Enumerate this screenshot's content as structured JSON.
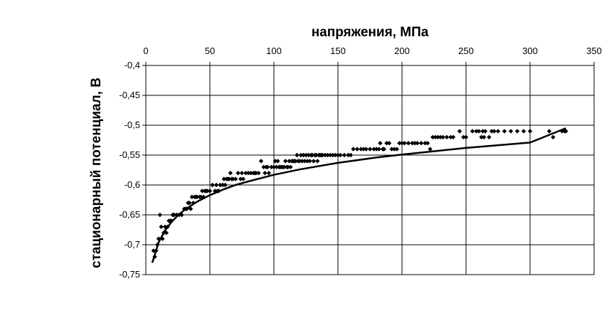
{
  "chart_data": {
    "type": "scatter",
    "xlabel": "напряжения, МПа",
    "ylabel": "стационарный потенциал, В",
    "x_axis_position": "top",
    "xlim": [
      0,
      350
    ],
    "ylim": [
      -0.75,
      -0.4
    ],
    "xticks": [
      0,
      50,
      100,
      150,
      200,
      250,
      300,
      350
    ],
    "yticks": [
      -0.4,
      -0.45,
      -0.5,
      -0.55,
      -0.6,
      -0.65,
      -0.7,
      -0.75
    ],
    "xtick_labels": [
      "0",
      "50",
      "100",
      "150",
      "200",
      "250",
      "300",
      "350"
    ],
    "ytick_labels": [
      "-0,4",
      "-0,45",
      "-0,5",
      "-0,55",
      "-0,6",
      "-0,65",
      "-0,7",
      "-0,75"
    ],
    "grid": true,
    "marker": "diamond",
    "marker_color": "#000000",
    "series": [
      {
        "points": [
          [
            6,
            -0.71
          ],
          [
            7,
            -0.72
          ],
          [
            8,
            -0.71
          ],
          [
            9,
            -0.7
          ],
          [
            10,
            -0.69
          ],
          [
            11,
            -0.65
          ],
          [
            12,
            -0.67
          ],
          [
            13,
            -0.69
          ],
          [
            14,
            -0.68
          ],
          [
            15,
            -0.67
          ],
          [
            16,
            -0.68
          ],
          [
            17,
            -0.67
          ],
          [
            18,
            -0.66
          ],
          [
            19,
            -0.66
          ],
          [
            20,
            -0.66
          ],
          [
            21,
            -0.65
          ],
          [
            22,
            -0.65
          ],
          [
            24,
            -0.65
          ],
          [
            26,
            -0.65
          ],
          [
            28,
            -0.65
          ],
          [
            30,
            -0.64
          ],
          [
            31,
            -0.64
          ],
          [
            32,
            -0.64
          ],
          [
            33,
            -0.63
          ],
          [
            34,
            -0.63
          ],
          [
            35,
            -0.64
          ],
          [
            36,
            -0.62
          ],
          [
            37,
            -0.63
          ],
          [
            38,
            -0.62
          ],
          [
            39,
            -0.62
          ],
          [
            40,
            -0.62
          ],
          [
            42,
            -0.62
          ],
          [
            43,
            -0.62
          ],
          [
            44,
            -0.61
          ],
          [
            45,
            -0.62
          ],
          [
            46,
            -0.61
          ],
          [
            47,
            -0.61
          ],
          [
            48,
            -0.61
          ],
          [
            50,
            -0.61
          ],
          [
            52,
            -0.6
          ],
          [
            54,
            -0.61
          ],
          [
            55,
            -0.6
          ],
          [
            56,
            -0.61
          ],
          [
            57,
            -0.61
          ],
          [
            58,
            -0.6
          ],
          [
            60,
            -0.6
          ],
          [
            61,
            -0.59
          ],
          [
            62,
            -0.6
          ],
          [
            63,
            -0.59
          ],
          [
            64,
            -0.59
          ],
          [
            65,
            -0.59
          ],
          [
            66,
            -0.58
          ],
          [
            67,
            -0.59
          ],
          [
            68,
            -0.59
          ],
          [
            70,
            -0.59
          ],
          [
            72,
            -0.58
          ],
          [
            74,
            -0.59
          ],
          [
            75,
            -0.58
          ],
          [
            76,
            -0.59
          ],
          [
            78,
            -0.58
          ],
          [
            80,
            -0.58
          ],
          [
            82,
            -0.58
          ],
          [
            84,
            -0.58
          ],
          [
            85,
            -0.58
          ],
          [
            86,
            -0.58
          ],
          [
            88,
            -0.58
          ],
          [
            90,
            -0.56
          ],
          [
            92,
            -0.57
          ],
          [
            93,
            -0.58
          ],
          [
            94,
            -0.57
          ],
          [
            95,
            -0.57
          ],
          [
            96,
            -0.58
          ],
          [
            98,
            -0.57
          ],
          [
            100,
            -0.57
          ],
          [
            101,
            -0.56
          ],
          [
            102,
            -0.57
          ],
          [
            103,
            -0.56
          ],
          [
            104,
            -0.57
          ],
          [
            105,
            -0.57
          ],
          [
            106,
            -0.57
          ],
          [
            107,
            -0.57
          ],
          [
            108,
            -0.57
          ],
          [
            109,
            -0.56
          ],
          [
            110,
            -0.57
          ],
          [
            111,
            -0.57
          ],
          [
            112,
            -0.56
          ],
          [
            113,
            -0.57
          ],
          [
            114,
            -0.56
          ],
          [
            115,
            -0.56
          ],
          [
            116,
            -0.56
          ],
          [
            117,
            -0.56
          ],
          [
            118,
            -0.55
          ],
          [
            119,
            -0.56
          ],
          [
            120,
            -0.56
          ],
          [
            121,
            -0.55
          ],
          [
            122,
            -0.56
          ],
          [
            123,
            -0.55
          ],
          [
            124,
            -0.56
          ],
          [
            125,
            -0.55
          ],
          [
            126,
            -0.56
          ],
          [
            127,
            -0.55
          ],
          [
            128,
            -0.56
          ],
          [
            129,
            -0.55
          ],
          [
            130,
            -0.55
          ],
          [
            131,
            -0.56
          ],
          [
            132,
            -0.55
          ],
          [
            133,
            -0.55
          ],
          [
            134,
            -0.56
          ],
          [
            135,
            -0.55
          ],
          [
            136,
            -0.55
          ],
          [
            137,
            -0.55
          ],
          [
            138,
            -0.55
          ],
          [
            140,
            -0.55
          ],
          [
            142,
            -0.55
          ],
          [
            144,
            -0.55
          ],
          [
            146,
            -0.55
          ],
          [
            148,
            -0.55
          ],
          [
            150,
            -0.55
          ],
          [
            152,
            -0.55
          ],
          [
            155,
            -0.55
          ],
          [
            158,
            -0.55
          ],
          [
            160,
            -0.55
          ],
          [
            162,
            -0.54
          ],
          [
            165,
            -0.54
          ],
          [
            168,
            -0.54
          ],
          [
            170,
            -0.54
          ],
          [
            172,
            -0.54
          ],
          [
            175,
            -0.54
          ],
          [
            178,
            -0.54
          ],
          [
            180,
            -0.54
          ],
          [
            182,
            -0.54
          ],
          [
            183,
            -0.53
          ],
          [
            185,
            -0.54
          ],
          [
            186,
            -0.54
          ],
          [
            188,
            -0.53
          ],
          [
            190,
            -0.53
          ],
          [
            192,
            -0.54
          ],
          [
            194,
            -0.54
          ],
          [
            196,
            -0.54
          ],
          [
            198,
            -0.53
          ],
          [
            200,
            -0.53
          ],
          [
            202,
            -0.53
          ],
          [
            205,
            -0.53
          ],
          [
            208,
            -0.53
          ],
          [
            210,
            -0.53
          ],
          [
            212,
            -0.53
          ],
          [
            215,
            -0.53
          ],
          [
            218,
            -0.53
          ],
          [
            220,
            -0.53
          ],
          [
            222,
            -0.54
          ],
          [
            224,
            -0.52
          ],
          [
            226,
            -0.52
          ],
          [
            228,
            -0.52
          ],
          [
            230,
            -0.52
          ],
          [
            232,
            -0.52
          ],
          [
            235,
            -0.52
          ],
          [
            238,
            -0.52
          ],
          [
            240,
            -0.52
          ],
          [
            245,
            -0.51
          ],
          [
            248,
            -0.52
          ],
          [
            250,
            -0.52
          ],
          [
            255,
            -0.51
          ],
          [
            258,
            -0.51
          ],
          [
            260,
            -0.51
          ],
          [
            262,
            -0.52
          ],
          [
            263,
            -0.51
          ],
          [
            264,
            -0.52
          ],
          [
            265,
            -0.51
          ],
          [
            268,
            -0.52
          ],
          [
            270,
            -0.51
          ],
          [
            272,
            -0.51
          ],
          [
            275,
            -0.51
          ],
          [
            280,
            -0.51
          ],
          [
            285,
            -0.51
          ],
          [
            290,
            -0.51
          ],
          [
            295,
            -0.51
          ],
          [
            300,
            -0.51
          ],
          [
            315,
            -0.51
          ],
          [
            318,
            -0.52
          ],
          [
            325,
            -0.51
          ],
          [
            327,
            -0.51
          ],
          [
            328,
            -0.51
          ]
        ]
      }
    ],
    "trendline": {
      "type": "logarithmic",
      "x": [
        5,
        10,
        15,
        20,
        25,
        30,
        40,
        50,
        60,
        70,
        80,
        100,
        120,
        150,
        180,
        200,
        250,
        300,
        328
      ],
      "y": [
        -0.73,
        -0.696,
        -0.676,
        -0.662,
        -0.651,
        -0.642,
        -0.628,
        -0.617,
        -0.608,
        -0.6,
        -0.594,
        -0.583,
        -0.574,
        -0.563,
        -0.554,
        -0.549,
        -0.538,
        -0.529,
        -0.505
      ]
    }
  }
}
